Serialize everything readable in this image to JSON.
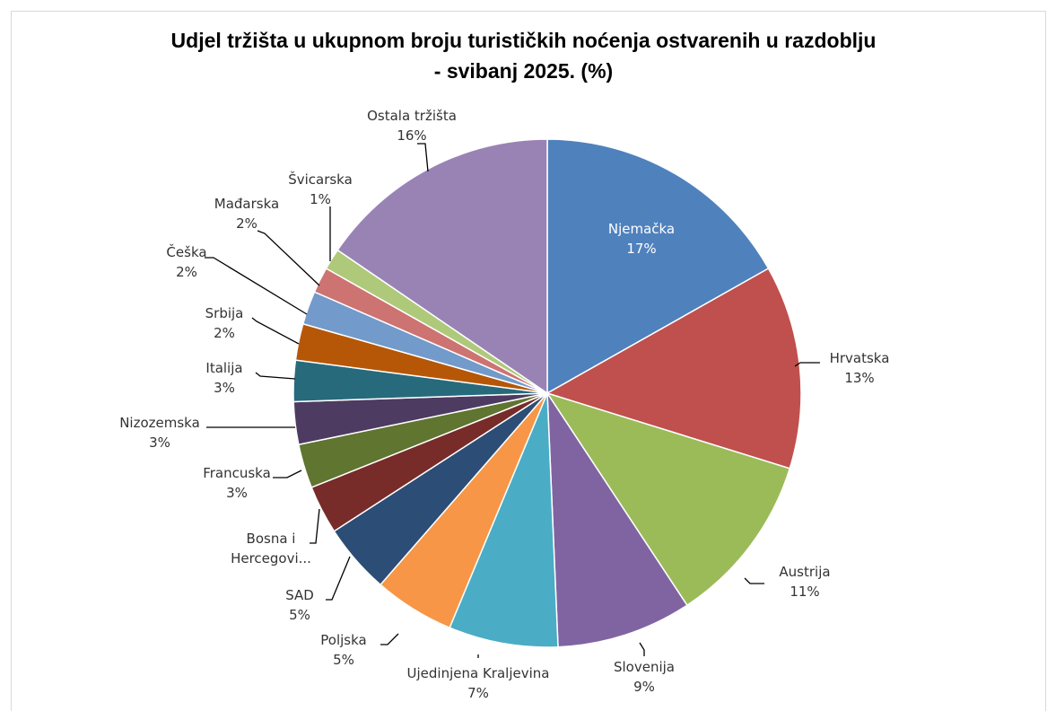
{
  "chart_data": {
    "type": "pie",
    "title_line1": "Udjel tržišta u ukupnom broju turističkih noćenja ostvarenih u razdoblju",
    "title_line2": "- svibanj 2025. (%)",
    "slices": [
      {
        "label": "Njemačka",
        "label_lines": [
          "Njemačka"
        ],
        "pct": "17%",
        "value": 17.4,
        "color": "#4F81BD"
      },
      {
        "label": "Hrvatska",
        "label_lines": [
          "Hrvatska"
        ],
        "pct": "13%",
        "value": 13.4,
        "color": "#C0504D"
      },
      {
        "label": "Austrija",
        "label_lines": [
          "Austrija"
        ],
        "pct": "11%",
        "value": 11.3,
        "color": "#9BBB59"
      },
      {
        "label": "Slovenija",
        "label_lines": [
          "Slovenija"
        ],
        "pct": "9%",
        "value": 8.9,
        "color": "#8064A2"
      },
      {
        "label": "Ujedinjena Kraljevina",
        "label_lines": [
          "Ujedinjena Kraljevina"
        ],
        "pct": "7%",
        "value": 7.2,
        "color": "#4BACC6"
      },
      {
        "label": "Poljska",
        "label_lines": [
          "Poljska"
        ],
        "pct": "5%",
        "value": 5.3,
        "color": "#F79646"
      },
      {
        "label": "SAD",
        "label_lines": [
          "SAD"
        ],
        "pct": "5%",
        "value": 4.6,
        "color": "#2C4D75"
      },
      {
        "label": "Bosna i Hercegovi...",
        "label_lines": [
          "Bosna i",
          "Hercegovi..."
        ],
        "pct": "",
        "value": 3.2,
        "color": "#772C2A"
      },
      {
        "label": "Francuska",
        "label_lines": [
          "Francuska"
        ],
        "pct": "3%",
        "value": 2.9,
        "color": "#5F7530"
      },
      {
        "label": "Nizozemska",
        "label_lines": [
          "Nizozemska"
        ],
        "pct": "3%",
        "value": 2.8,
        "color": "#4D3B62"
      },
      {
        "label": "Italija",
        "label_lines": [
          "Italija"
        ],
        "pct": "3%",
        "value": 2.7,
        "color": "#276A7C"
      },
      {
        "label": "Srbija",
        "label_lines": [
          "Srbija"
        ],
        "pct": "2%",
        "value": 2.4,
        "color": "#B65708"
      },
      {
        "label": "Češka",
        "label_lines": [
          "Češka"
        ],
        "pct": "2%",
        "value": 2.2,
        "color": "#729ACA"
      },
      {
        "label": "Mađarska",
        "label_lines": [
          "Mađarska"
        ],
        "pct": "2%",
        "value": 1.7,
        "color": "#CD7371"
      },
      {
        "label": "Švicarska",
        "label_lines": [
          "Švicarska"
        ],
        "pct": "1%",
        "value": 1.4,
        "color": "#AFC97A"
      },
      {
        "label": "Ostala tržišta",
        "label_lines": [
          "Ostala tržišta"
        ],
        "pct": "16%",
        "value": 16.0,
        "color": "#9983B5"
      }
    ],
    "legend": "none",
    "data_labels": "category-and-percent"
  }
}
